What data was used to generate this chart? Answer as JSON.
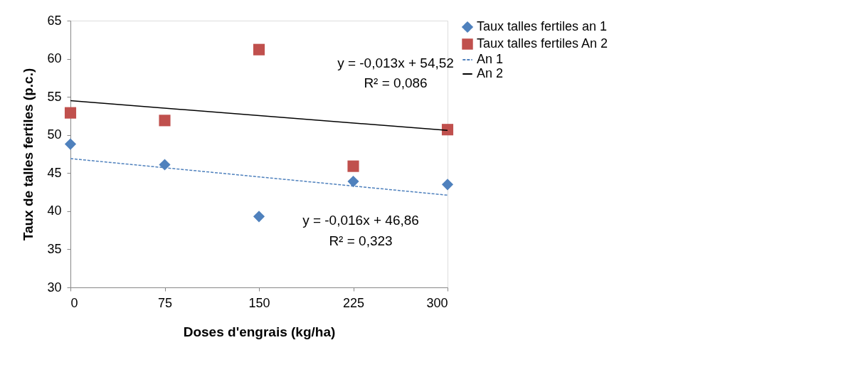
{
  "chart_data": {
    "type": "scatter",
    "xlabel": "Doses d'engrais (kg/ha)",
    "ylabel": "Taux de talles fertiles (p.c.)",
    "xlim": [
      0,
      300
    ],
    "xticks": [
      0,
      75,
      150,
      225,
      300
    ],
    "ylim": [
      30,
      65
    ],
    "yticks": [
      30,
      35,
      40,
      45,
      50,
      55,
      60,
      65
    ],
    "grid": false,
    "legend": "right",
    "series": [
      {
        "name": "Taux talles fertiles an 1",
        "marker": "diamond",
        "color": "#4f81bd",
        "x": [
          0,
          75,
          150,
          225,
          300
        ],
        "values": [
          48.8,
          46.1,
          39.3,
          43.9,
          43.5
        ]
      },
      {
        "name": "Taux talles fertiles An 2",
        "marker": "square",
        "color": "#c0504d",
        "x": [
          0,
          75,
          150,
          225,
          300
        ],
        "values": [
          52.9,
          51.9,
          61.2,
          45.9,
          50.7
        ]
      },
      {
        "name": "An 1",
        "type": "line",
        "line_style": "dashed",
        "color": "#4f81bd",
        "x": [
          0,
          300
        ],
        "values": [
          46.9,
          42.1
        ]
      },
      {
        "name": "An 2",
        "type": "line",
        "line_style": "solid",
        "color": "#000000",
        "x": [
          0,
          300
        ],
        "values": [
          54.5,
          50.6
        ]
      }
    ],
    "annotations": [
      "y = -0,013x + 54,52",
      "R² = 0,086",
      "y = -0,016x + 46,86",
      "R² = 0,323"
    ]
  }
}
